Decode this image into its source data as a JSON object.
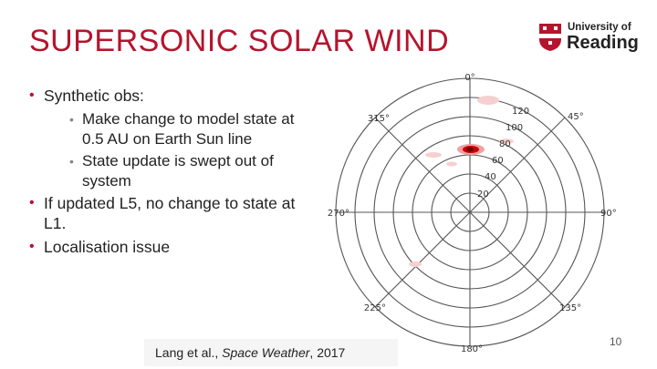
{
  "slide": {
    "title": "SUPERSONIC SOLAR WIND",
    "page_number": "10"
  },
  "logo": {
    "line1": "University of",
    "line2": "Reading",
    "colors": {
      "crest": "#b5142d"
    }
  },
  "bullets": {
    "b1": "Synthetic obs:",
    "b1_sub1": "Make change to model state at 0.5 AU on Earth Sun line",
    "b1_sub2": "State update is swept out of system",
    "b2": "If updated L5, no change to state at L1.",
    "b3": "Localisation issue"
  },
  "citation": {
    "authors": "Lang et al., ",
    "journal": "Space Weather",
    "year": ", 2017"
  },
  "polar_plot": {
    "angle_labels": [
      "0°",
      "45°",
      "90°",
      "135°",
      "180°",
      "225°",
      "270°",
      "315°"
    ],
    "radius_labels": [
      "20",
      "40",
      "60",
      "80",
      "100",
      "120"
    ],
    "highlight_color": "#cc0000"
  }
}
